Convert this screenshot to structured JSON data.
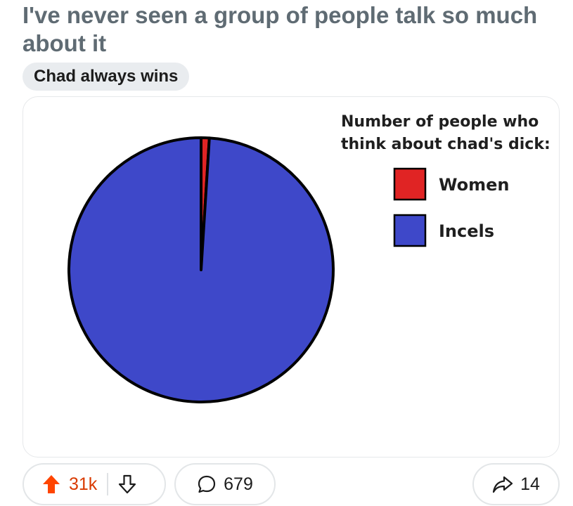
{
  "post": {
    "title": "I've never seen a group of people talk so much about it",
    "flair": "Chad always wins"
  },
  "chart_data": {
    "type": "pie",
    "title_lines": [
      "Number of people who",
      "think about chad's dick:"
    ],
    "slices": [
      {
        "label": "Women",
        "value": 1,
        "color": "#e02424"
      },
      {
        "label": "Incels",
        "value": 99,
        "color": "#3e48c9"
      }
    ]
  },
  "actions": {
    "upvotes": "31k",
    "comments": "679",
    "shares": "14",
    "upvote_color": "#ff4500"
  }
}
